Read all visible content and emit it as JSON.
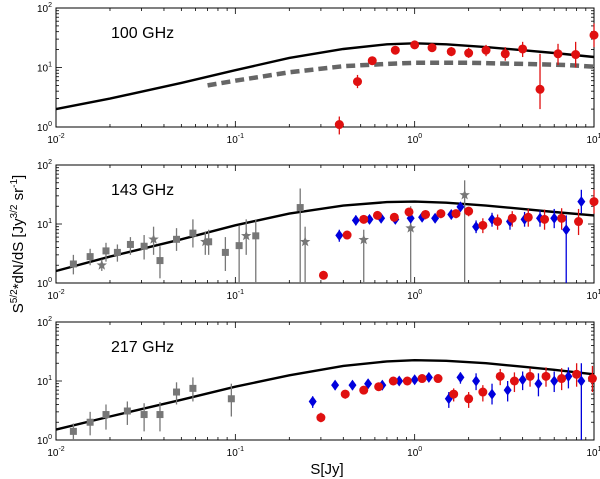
{
  "chart_data": {
    "type": "scatter",
    "ylabel": "S^{5/2}*dN/dS [Jy^{3/2} sr^{-1}]",
    "xlabel": "S[Jy]",
    "xscale": "log",
    "yscale": "log",
    "xlim": [
      0.01,
      10
    ],
    "ylim": [
      1,
      100
    ],
    "x_tick_labels": [
      "10^-2",
      "10^-1",
      "10^0",
      "10^1"
    ],
    "y_tick_labels": [
      "10^0",
      "10^1",
      "10^2"
    ],
    "colors": {
      "red": "#e01010",
      "blue": "#0000dd",
      "gray": "#777777",
      "model": "#000000",
      "model_dashed": "#666666"
    },
    "panels": [
      {
        "label": "100 GHz",
        "series": [
          {
            "name": "model",
            "kind": "line",
            "color": "model",
            "x": [
              0.01,
              0.02,
              0.05,
              0.1,
              0.2,
              0.4,
              0.7,
              1.0,
              1.5,
              2.5,
              4,
              6,
              10
            ],
            "y": [
              2.0,
              3.0,
              5.5,
              9.0,
              14.5,
              20.5,
              24.5,
              25.5,
              24.5,
              22.0,
              19.5,
              17.5,
              15.0
            ]
          },
          {
            "name": "model (dashed)",
            "kind": "dashed",
            "color": "model_dashed",
            "x": [
              0.07,
              0.1,
              0.2,
              0.4,
              0.7,
              1.0,
              2.0,
              4.0,
              7.0,
              10.0
            ],
            "y": [
              5.0,
              6.0,
              8.3,
              10.5,
              11.5,
              12.0,
              12.0,
              11.5,
              11.0,
              10.3
            ]
          },
          {
            "name": "red points",
            "kind": "circle",
            "color": "red",
            "x": [
              0.38,
              0.48,
              0.58,
              0.78,
              1.0,
              1.25,
              1.6,
              2.0,
              2.5,
              3.2,
              4.0,
              5.0,
              6.3,
              7.9,
              10.0
            ],
            "y": [
              1.1,
              5.8,
              13.0,
              19.5,
              24.0,
              21.5,
              18.5,
              17.5,
              19.5,
              17.0,
              20.5,
              4.3,
              17.0,
              16.5,
              35.0
            ],
            "ylo": [
              0.75,
              4.5,
              11.0,
              17.0,
              22.0,
              19.5,
              15.5,
              14.5,
              15.5,
              13.0,
              15.0,
              2.0,
              11.0,
              10.0,
              22.0
            ],
            "yhi": [
              1.5,
              7.5,
              15.0,
              22.5,
              26.0,
              24.0,
              22.0,
              21.5,
              24.0,
              22.0,
              27.0,
              17.0,
              25.0,
              27.0,
              55.0
            ]
          }
        ]
      },
      {
        "label": "143 GHz",
        "series": [
          {
            "name": "model",
            "kind": "line",
            "color": "model",
            "x": [
              0.01,
              0.02,
              0.05,
              0.1,
              0.2,
              0.4,
              0.7,
              1.0,
              1.5,
              2.5,
              4,
              6,
              10
            ],
            "y": [
              1.6,
              2.8,
              5.5,
              9.5,
              15.0,
              20.5,
              23.5,
              24.0,
              23.0,
              20.5,
              18.0,
              16.0,
              14.0
            ]
          },
          {
            "name": "gray squares",
            "kind": "square",
            "color": "gray",
            "x": [
              0.0125,
              0.0155,
              0.019,
              0.022,
              0.026,
              0.031,
              0.038,
              0.047,
              0.058,
              0.071,
              0.088,
              0.105,
              0.13,
              0.23
            ],
            "y": [
              2.1,
              2.8,
              3.5,
              3.3,
              4.5,
              4.2,
              2.4,
              5.5,
              7.0,
              5.0,
              3.3,
              4.3,
              6.3,
              19.0
            ],
            "ylo": [
              1.4,
              2.0,
              2.3,
              2.3,
              3.0,
              2.5,
              1.2,
              3.5,
              4.0,
              3.0,
              1.6,
              1.0,
              1.0,
              1.0
            ],
            "yhi": [
              3.0,
              3.8,
              4.8,
              4.5,
              6.0,
              6.5,
              4.2,
              8.5,
              12.0,
              8.0,
              6.0,
              9.5,
              12.0,
              40.0
            ]
          },
          {
            "name": "gray stars",
            "kind": "star",
            "color": "gray",
            "x": [
              0.018,
              0.035,
              0.068,
              0.115,
              0.245,
              0.52,
              0.95,
              1.9
            ],
            "y": [
              2.0,
              5.5,
              5.0,
              6.3,
              5.0,
              5.4,
              8.5,
              31.0
            ],
            "ylo": [
              1.6,
              3.0,
              3.0,
              3.0,
              1.0,
              1.0,
              1.0,
              1.0
            ],
            "yhi": [
              2.5,
              9.0,
              7.5,
              12.0,
              9.0,
              8.0,
              20.0,
              55.0
            ]
          },
          {
            "name": "blue diamonds",
            "kind": "diamond",
            "color": "blue",
            "x": [
              0.38,
              0.47,
              0.56,
              0.65,
              0.78,
              0.95,
              1.1,
              1.3,
              1.6,
              1.8,
              2.2,
              2.7,
              3.4,
              4.1,
              5.0,
              6.0,
              7.0,
              8.5
            ],
            "y": [
              6.4,
              11.5,
              12.0,
              12.5,
              12.0,
              12.5,
              13.0,
              12.5,
              14.5,
              19.5,
              9.0,
              12.0,
              11.0,
              12.0,
              12.5,
              12.5,
              8.0,
              24.0
            ],
            "ylo": [
              5.0,
              9.5,
              10.5,
              11.0,
              10.5,
              11.0,
              11.5,
              11.0,
              12.0,
              17.0,
              7.0,
              9.0,
              8.0,
              9.0,
              9.0,
              8.5,
              1.0,
              15.0
            ],
            "yhi": [
              8.0,
              14.0,
              14.0,
              14.5,
              14.0,
              14.5,
              15.0,
              14.5,
              17.0,
              22.5,
              11.5,
              15.5,
              14.5,
              16.0,
              17.0,
              18.0,
              14.0,
              38.0
            ]
          },
          {
            "name": "red circles",
            "kind": "circle",
            "color": "red",
            "x": [
              0.31,
              0.42,
              0.52,
              0.62,
              0.77,
              0.93,
              1.15,
              1.4,
              1.7,
              2.0,
              2.4,
              2.9,
              3.5,
              4.3,
              5.3,
              6.6,
              8.2,
              10.0
            ],
            "y": [
              1.35,
              6.5,
              12.0,
              14.0,
              13.0,
              16.0,
              14.5,
              15.0,
              15.0,
              16.5,
              9.5,
              11.0,
              12.5,
              13.0,
              12.0,
              12.5,
              11.0,
              24.0
            ],
            "ylo": [
              1.15,
              5.5,
              10.5,
              12.0,
              11.0,
              13.5,
              12.0,
              12.5,
              12.5,
              13.5,
              7.0,
              8.0,
              9.0,
              9.0,
              8.0,
              8.0,
              6.5,
              15.0
            ],
            "yhi": [
              1.6,
              7.5,
              13.5,
              16.0,
              15.0,
              18.5,
              17.0,
              17.5,
              17.5,
              19.5,
              12.5,
              14.5,
              16.5,
              18.0,
              17.5,
              18.5,
              18.0,
              38.0
            ]
          }
        ]
      },
      {
        "label": "217 GHz",
        "series": [
          {
            "name": "model",
            "kind": "line",
            "color": "model",
            "x": [
              0.01,
              0.02,
              0.05,
              0.1,
              0.2,
              0.4,
              0.7,
              1.0,
              1.5,
              2.5,
              4,
              6,
              10
            ],
            "y": [
              1.5,
              2.5,
              4.8,
              8.0,
              12.5,
              18.0,
              21.5,
              22.5,
              22.0,
              20.0,
              17.5,
              15.5,
              13.0
            ]
          },
          {
            "name": "gray squares",
            "kind": "square",
            "color": "gray",
            "x": [
              0.0125,
              0.0155,
              0.019,
              0.025,
              0.031,
              0.038,
              0.047,
              0.058,
              0.095
            ],
            "y": [
              1.4,
              2.0,
              2.7,
              3.1,
              2.7,
              2.7,
              6.5,
              7.5,
              5.0
            ],
            "ylo": [
              1.0,
              1.2,
              1.5,
              1.8,
              1.4,
              1.4,
              4.0,
              4.5,
              2.5
            ],
            "yhi": [
              1.9,
              3.0,
              4.0,
              4.5,
              4.2,
              4.4,
              9.5,
              11.5,
              9.0
            ]
          },
          {
            "name": "blue diamonds",
            "kind": "diamond",
            "color": "blue",
            "x": [
              0.27,
              0.36,
              0.45,
              0.55,
              0.66,
              0.82,
              1.0,
              1.2,
              1.55,
              1.8,
              2.2,
              2.7,
              3.3,
              4.0,
              4.9,
              6.0,
              7.2,
              8.5
            ],
            "y": [
              4.5,
              8.5,
              8.5,
              9.0,
              8.5,
              10.0,
              10.5,
              11.5,
              5.0,
              11.5,
              10.0,
              6.0,
              7.0,
              10.5,
              9.0,
              10.0,
              12.0,
              10.0
            ],
            "ylo": [
              3.5,
              7.0,
              7.0,
              7.5,
              7.0,
              8.5,
              9.0,
              10.0,
              3.5,
              9.0,
              7.0,
              4.0,
              4.5,
              7.0,
              5.5,
              6.5,
              7.5,
              1.0
            ],
            "yhi": [
              5.5,
              10.0,
              10.0,
              10.5,
              10.0,
              11.5,
              12.0,
              13.0,
              6.5,
              14.0,
              13.5,
              9.0,
              10.0,
              14.5,
              13.5,
              14.5,
              17.0,
              20.0
            ]
          },
          {
            "name": "red circles",
            "kind": "circle",
            "color": "red",
            "x": [
              0.3,
              0.41,
              0.52,
              0.63,
              0.76,
              0.91,
              1.1,
              1.35,
              1.65,
              2.0,
              2.4,
              3.0,
              3.6,
              4.4,
              5.4,
              6.6,
              8.0,
              9.8
            ],
            "y": [
              2.4,
              6.0,
              7.0,
              8.0,
              10.0,
              10.0,
              11.0,
              11.0,
              6.0,
              5.0,
              6.5,
              12.0,
              10.0,
              12.0,
              12.0,
              11.0,
              13.0,
              11.0
            ],
            "ylo": [
              2.0,
              5.0,
              6.0,
              7.0,
              8.5,
              8.5,
              9.5,
              9.5,
              4.5,
              3.5,
              4.5,
              8.5,
              6.5,
              8.0,
              8.0,
              7.0,
              8.0,
              6.5
            ],
            "yhi": [
              2.9,
              7.0,
              8.0,
              9.0,
              11.5,
              11.5,
              12.5,
              12.5,
              7.5,
              6.5,
              8.5,
              16.0,
              14.0,
              16.5,
              17.0,
              16.5,
              20.0,
              18.0
            ]
          }
        ]
      }
    ]
  }
}
